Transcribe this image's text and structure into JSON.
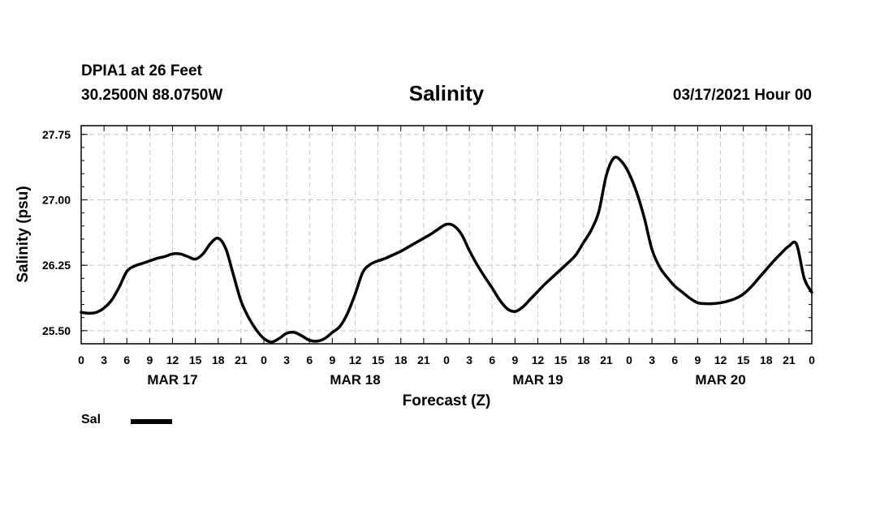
{
  "header": {
    "station": "DPIA1 at 26 Feet",
    "coords": "30.2500N 88.0750W",
    "title": "Salinity",
    "runtime": "03/17/2021 Hour 00"
  },
  "legend": {
    "label": "Sal",
    "color": "#000000"
  },
  "chart_data": {
    "type": "line",
    "title": "Salinity",
    "xlabel": "Forecast (Z)",
    "ylabel": "Salinity (psu)",
    "xlim": [
      0,
      96
    ],
    "ylim": [
      25.35,
      27.85
    ],
    "y_ticks": [
      25.5,
      26.25,
      27.0,
      27.75
    ],
    "y_tick_labels": [
      "25.50",
      "26.25",
      "27.00",
      "27.75"
    ],
    "x_ticks": [
      0,
      3,
      6,
      9,
      12,
      15,
      18,
      21,
      24,
      27,
      30,
      33,
      36,
      39,
      42,
      45,
      48,
      51,
      54,
      57,
      60,
      63,
      66,
      69,
      72,
      75,
      78,
      81,
      84,
      87,
      90,
      93,
      96
    ],
    "x_tick_labels": [
      "0",
      "3",
      "6",
      "9",
      "12",
      "15",
      "18",
      "21",
      "0",
      "3",
      "6",
      "9",
      "12",
      "15",
      "18",
      "21",
      "0",
      "3",
      "6",
      "9",
      "12",
      "15",
      "18",
      "21",
      "0",
      "3",
      "6",
      "9",
      "12",
      "15",
      "18",
      "21",
      "0"
    ],
    "day_labels": [
      {
        "at": 12,
        "label": "MAR 17"
      },
      {
        "at": 36,
        "label": "MAR 18"
      },
      {
        "at": 60,
        "label": "MAR 19"
      },
      {
        "at": 84,
        "label": "MAR 20"
      }
    ],
    "grid": true,
    "series": [
      {
        "name": "Sal",
        "color": "#000000",
        "x": [
          0,
          1,
          2,
          3,
          4,
          5,
          6,
          7,
          8,
          9,
          10,
          11,
          12,
          13,
          14,
          15,
          16,
          17,
          18,
          19,
          20,
          21,
          22,
          23,
          24,
          25,
          26,
          27,
          28,
          29,
          30,
          31,
          32,
          33,
          34,
          35,
          36,
          37,
          38,
          39,
          40,
          41,
          42,
          43,
          44,
          45,
          46,
          47,
          48,
          49,
          50,
          51,
          52,
          53,
          54,
          55,
          56,
          57,
          58,
          59,
          60,
          61,
          62,
          63,
          64,
          65,
          66,
          67,
          68,
          69,
          70,
          71,
          72,
          73,
          74,
          75,
          76,
          77,
          78,
          79,
          80,
          81,
          82,
          83,
          84,
          85,
          86,
          87,
          88,
          89,
          90,
          91,
          92,
          93,
          94,
          95,
          96
        ],
        "values": [
          25.71,
          25.7,
          25.71,
          25.76,
          25.85,
          26.0,
          26.18,
          26.24,
          26.27,
          26.3,
          26.33,
          26.35,
          26.38,
          26.38,
          26.35,
          26.32,
          26.38,
          26.5,
          26.56,
          26.44,
          26.14,
          25.84,
          25.65,
          25.51,
          25.41,
          25.37,
          25.41,
          25.47,
          25.48,
          25.44,
          25.39,
          25.38,
          25.41,
          25.48,
          25.55,
          25.7,
          25.92,
          26.17,
          26.26,
          26.3,
          26.33,
          26.37,
          26.41,
          26.46,
          26.51,
          26.56,
          26.61,
          26.67,
          26.72,
          26.7,
          26.6,
          26.42,
          26.26,
          26.12,
          25.99,
          25.85,
          25.75,
          25.72,
          25.77,
          25.86,
          25.95,
          26.04,
          26.12,
          26.2,
          26.28,
          26.37,
          26.51,
          26.65,
          26.86,
          27.28,
          27.48,
          27.44,
          27.3,
          27.08,
          26.79,
          26.43,
          26.23,
          26.11,
          26.01,
          25.94,
          25.87,
          25.82,
          25.81,
          25.81,
          25.82,
          25.84,
          25.87,
          25.92,
          26.0,
          26.1,
          26.2,
          26.3,
          26.39,
          26.47,
          26.49,
          26.1,
          25.94
        ]
      }
    ]
  }
}
